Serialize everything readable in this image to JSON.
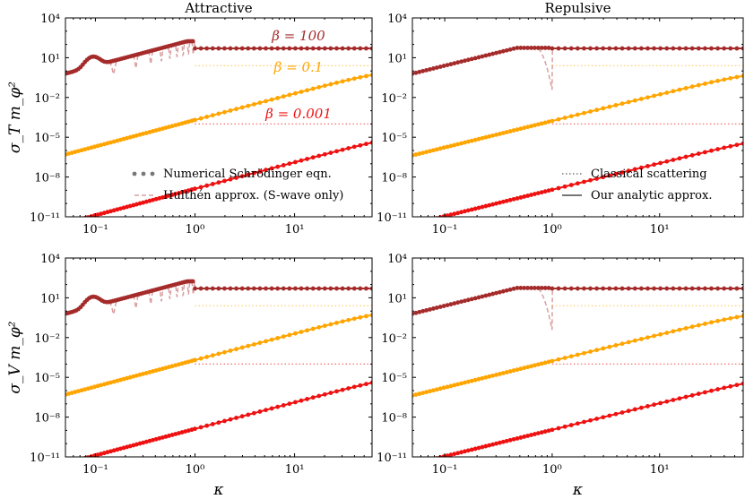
{
  "chart_data": {
    "type": "line",
    "columns": [
      {
        "key": "attractive",
        "title": "Attractive"
      },
      {
        "key": "repulsive",
        "title": "Repulsive"
      }
    ],
    "rows": [
      {
        "key": "T",
        "ylabel": "σ_T m_φ²"
      },
      {
        "key": "V",
        "ylabel": "σ_V m_φ²"
      }
    ],
    "xlabel": "κ",
    "xscale": "log",
    "yscale": "log",
    "xlim": [
      0.05,
      60
    ],
    "ylim": [
      1e-11,
      10000.0
    ],
    "xticks": [
      {
        "value": 0.1,
        "label": "10⁻¹"
      },
      {
        "value": 1,
        "label": "10⁰"
      },
      {
        "value": 10,
        "label": "10¹"
      }
    ],
    "yticks": [
      {
        "value": 1e-11,
        "label": "10⁻¹¹"
      },
      {
        "value": 1e-08,
        "label": "10⁻⁸"
      },
      {
        "value": 1e-05,
        "label": "10⁻⁵"
      },
      {
        "value": 0.01,
        "label": "10⁻²"
      },
      {
        "value": 10,
        "label": "10¹"
      },
      {
        "value": 10000.0,
        "label": "10⁴"
      }
    ],
    "betas": [
      {
        "label": "β = 100",
        "color": "#a52a2a",
        "A": 2.7,
        "B": 50,
        "classical": 50
      },
      {
        "label": "β = 0.1",
        "color": "#ffa500",
        "A": 0.0002,
        "B": 1.6,
        "classical": 2.5
      },
      {
        "label": "β = 0.001",
        "color": "#ee1111",
        "A": 1.3e-09,
        "B": 2.5e-05,
        "classical": 0.0001
      }
    ],
    "legend": {
      "attractive": [
        {
          "label": "Numerical Schrödinger eqn.",
          "style": "dots"
        },
        {
          "label": "Hulthén approx. (S-wave only)",
          "style": "dashed"
        }
      ],
      "repulsive": [
        {
          "label": "Classical scattering",
          "style": "dotted"
        },
        {
          "label": "Our analytic approx.",
          "style": "solid"
        }
      ]
    },
    "colors": {
      "hulthen": "#d9a0a0",
      "legend_gray": "#777777"
    }
  }
}
